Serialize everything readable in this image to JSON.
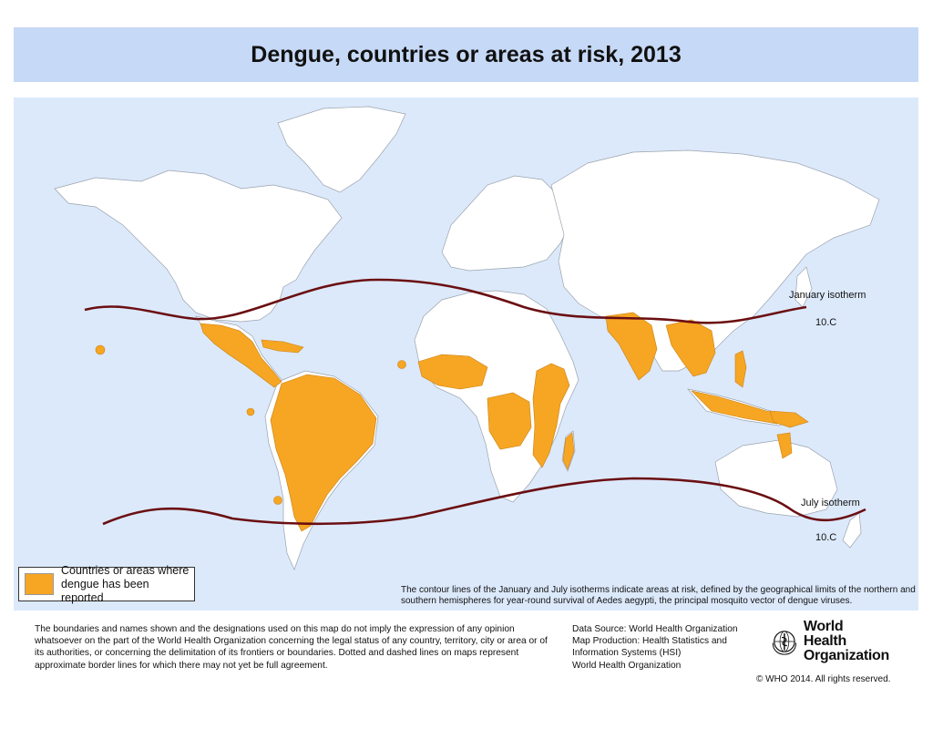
{
  "title": "Dengue, countries or areas at risk, 2013",
  "legend": {
    "label_line1": "Countries or areas where",
    "label_line2": "dengue has been reported",
    "color": "#f6a623"
  },
  "colors": {
    "ocean": "#dce9fb",
    "land": "#ffffff",
    "risk": "#f6a623",
    "isotherm": "#6b0f12",
    "title_bar": "#c6d9f7"
  },
  "isotherms": {
    "january_label": "January isotherm",
    "january_value": "10.C",
    "july_label": "July  isotherm",
    "july_value": "10.C"
  },
  "isotherm_note": "The contour lines of the January and July isotherms indicate areas at risk, defined by the geographical limits of the northern and southern hemispheres for year-round survival of Aedes aegypti, the principal mosquito vector of dengue viruses.",
  "disclaimer": "The boundaries and names shown and the designations used on this map do not imply the expression of any opinion whatsoever on the part of the World Health Organization concerning the legal status of any country, territory, city or area or of its authorities, or concerning the delimitation of its frontiers or boundaries. Dotted and dashed lines on maps represent approximate border lines for which there may not yet be full agreement.",
  "data_source": {
    "line1": "Data Source: World Health Organization",
    "line2": "Map Production: Health Statistics and",
    "line3": "Information Systems (HSI)",
    "line4": "World Health Organization"
  },
  "organization": {
    "name_line1": "World Health",
    "name_line2": "Organization",
    "logo_icon": "who-emblem-icon"
  },
  "copyright": "© WHO 2014. All rights reserved."
}
